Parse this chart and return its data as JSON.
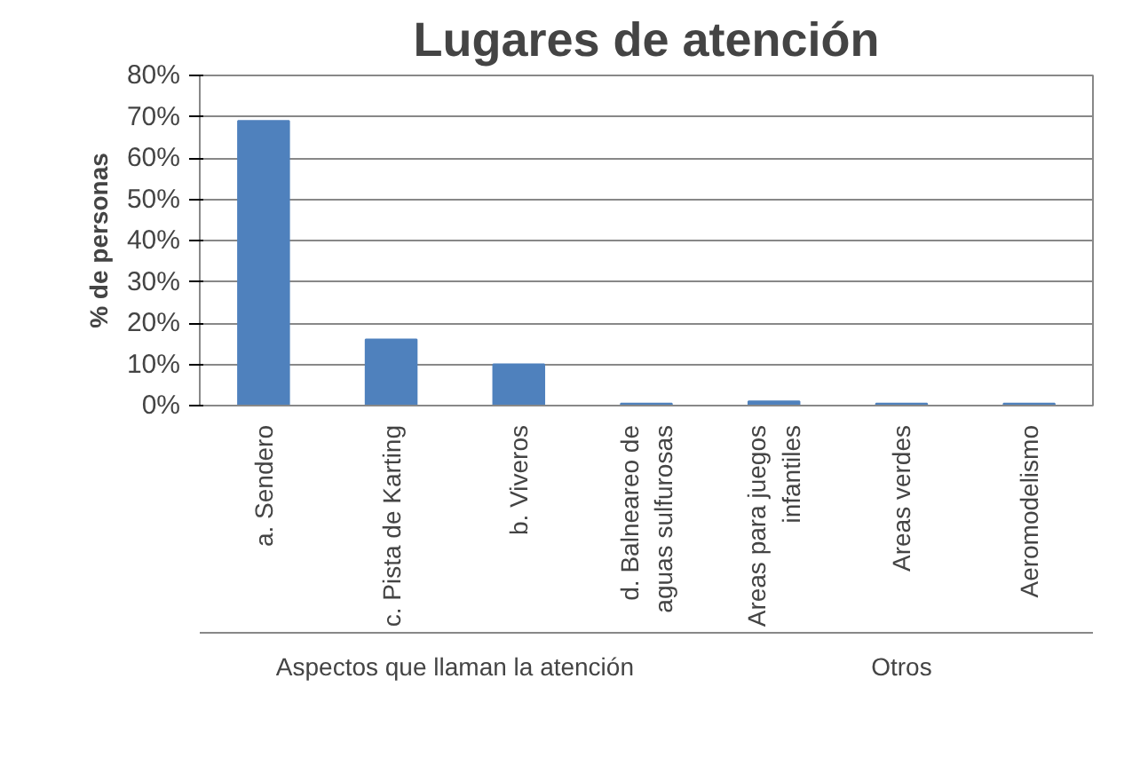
{
  "chart_data": {
    "type": "bar",
    "title": "Lugares de atención",
    "ylabel": "% de personas",
    "categories": [
      "a. Sendero",
      "c. Pista de Karting",
      "b. Viveros",
      "d. Balneareo de\naguas sulfurosas",
      "Areas para juegos\ninfantiles",
      "Areas verdes",
      "Aeromodelismo"
    ],
    "values": [
      69,
      16,
      10,
      0.5,
      1,
      0.5,
      0.5
    ],
    "color": "#4f81bd",
    "ylim": [
      0,
      80
    ],
    "yticks": [
      {
        "value": 0,
        "label": "0%"
      },
      {
        "value": 10,
        "label": "10%"
      },
      {
        "value": 20,
        "label": "20%"
      },
      {
        "value": 30,
        "label": "30%"
      },
      {
        "value": 40,
        "label": "40%"
      },
      {
        "value": 50,
        "label": "50%"
      },
      {
        "value": 60,
        "label": "60%"
      },
      {
        "value": 70,
        "label": "70%"
      },
      {
        "value": 80,
        "label": "80%"
      }
    ],
    "grid": "y",
    "annotations": [
      "Aspectos que llaman la atención",
      "Otros"
    ]
  }
}
